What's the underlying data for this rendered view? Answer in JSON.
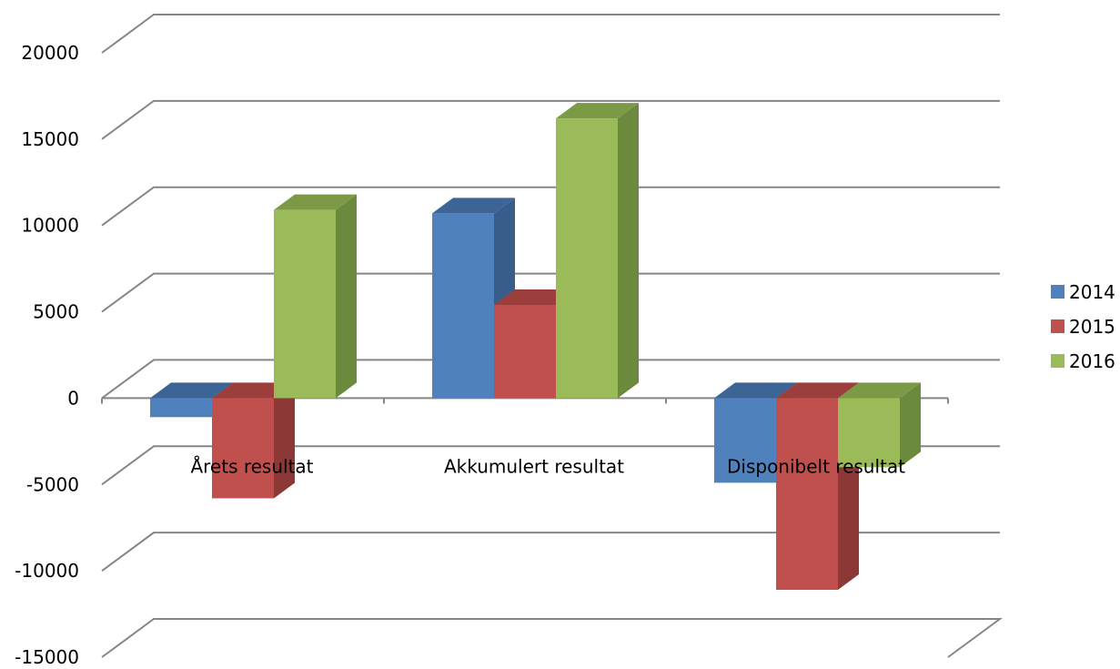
{
  "chart_data": {
    "type": "bar",
    "categories": [
      "Årets resultat",
      "Akkumulert resultat",
      "Disponibelt resultat"
    ],
    "series": [
      {
        "name": "2014",
        "values": [
          -1100,
          10700,
          -4900
        ]
      },
      {
        "name": "2015",
        "values": [
          -5800,
          5400,
          -11100
        ]
      },
      {
        "name": "2016",
        "values": [
          10900,
          16200,
          -4000
        ]
      }
    ],
    "ylim": [
      -15000,
      20000
    ],
    "yticks": [
      "20000",
      "15000",
      "10000",
      "5000",
      "0",
      "-5000",
      "-10000",
      "-15000"
    ],
    "grid": true,
    "legend": "right",
    "colors": {
      "2014": {
        "front": "#4f81bd",
        "side": "#385d8a",
        "top": "#3c6596"
      },
      "2015": {
        "front": "#c0504d",
        "side": "#8c3836",
        "top": "#9c3f3c"
      },
      "2016": {
        "front": "#9bbb59",
        "side": "#6c8a3e",
        "top": "#7c9a46"
      },
      "grid": "#868686"
    }
  }
}
